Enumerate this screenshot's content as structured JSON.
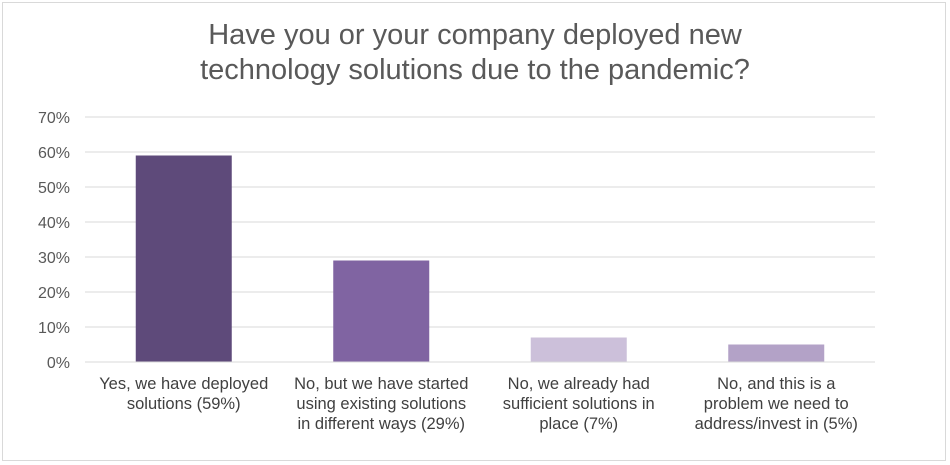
{
  "chart_data": {
    "type": "bar",
    "title_lines": [
      "Have you or your company deployed new",
      "technology solutions due to the pandemic?"
    ],
    "categories": [
      [
        "Yes, we have deployed",
        "solutions (59%)"
      ],
      [
        "No, but we have started",
        "using existing solutions",
        "in different ways (29%)"
      ],
      [
        "No, we already had",
        "sufficient solutions in",
        "place (7%)"
      ],
      [
        "No, and this is a",
        "problem we need to",
        "address/invest in (5%)"
      ]
    ],
    "values": [
      59,
      29,
      7,
      5
    ],
    "bar_colors": [
      "#5e4a7a",
      "#8064a2",
      "#ccc0da",
      "#b3a2c7"
    ],
    "y_ticks": [
      "0%",
      "10%",
      "20%",
      "30%",
      "40%",
      "50%",
      "60%",
      "70%"
    ],
    "ylim": [
      0,
      70
    ],
    "grid": true,
    "xlabel": "",
    "ylabel": ""
  }
}
